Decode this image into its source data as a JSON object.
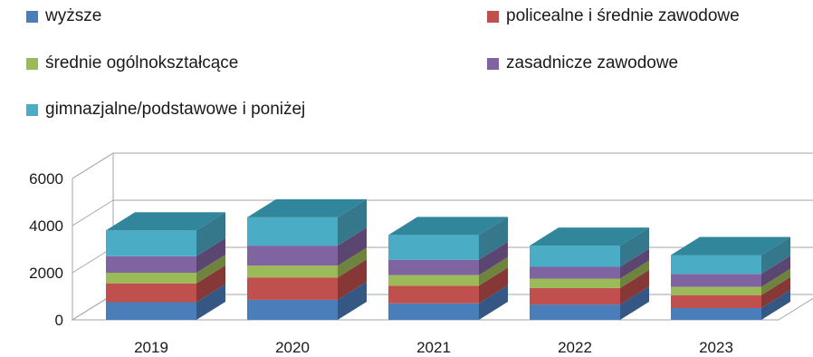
{
  "chart_data": {
    "type": "bar",
    "stacked": true,
    "three_d": true,
    "categories": [
      "2019",
      "2020",
      "2021",
      "2022",
      "2023"
    ],
    "series": [
      {
        "name": "wyższe",
        "color": "#4a7ebb",
        "values": [
          750,
          850,
          700,
          650,
          500
        ]
      },
      {
        "name": "policealne i średnie zawodowe",
        "color": "#c0504d",
        "values": [
          800,
          950,
          750,
          700,
          550
        ]
      },
      {
        "name": "średnie ogólnokształcące",
        "color": "#9bbb59",
        "values": [
          450,
          500,
          450,
          400,
          350
        ]
      },
      {
        "name": "zasadnicze zawodowe",
        "color": "#8064a2",
        "values": [
          700,
          850,
          650,
          500,
          550
        ]
      },
      {
        "name": "gimnazjalne/podstawowe i poniżej",
        "color": "#4bacc6",
        "values": [
          1100,
          1200,
          1050,
          900,
          800
        ]
      }
    ],
    "top_color": "#31869b",
    "ylim": [
      0,
      6000
    ],
    "yticks": [
      "0",
      "2000",
      "4000",
      "6000"
    ],
    "grid": true,
    "legend_position": "top"
  }
}
